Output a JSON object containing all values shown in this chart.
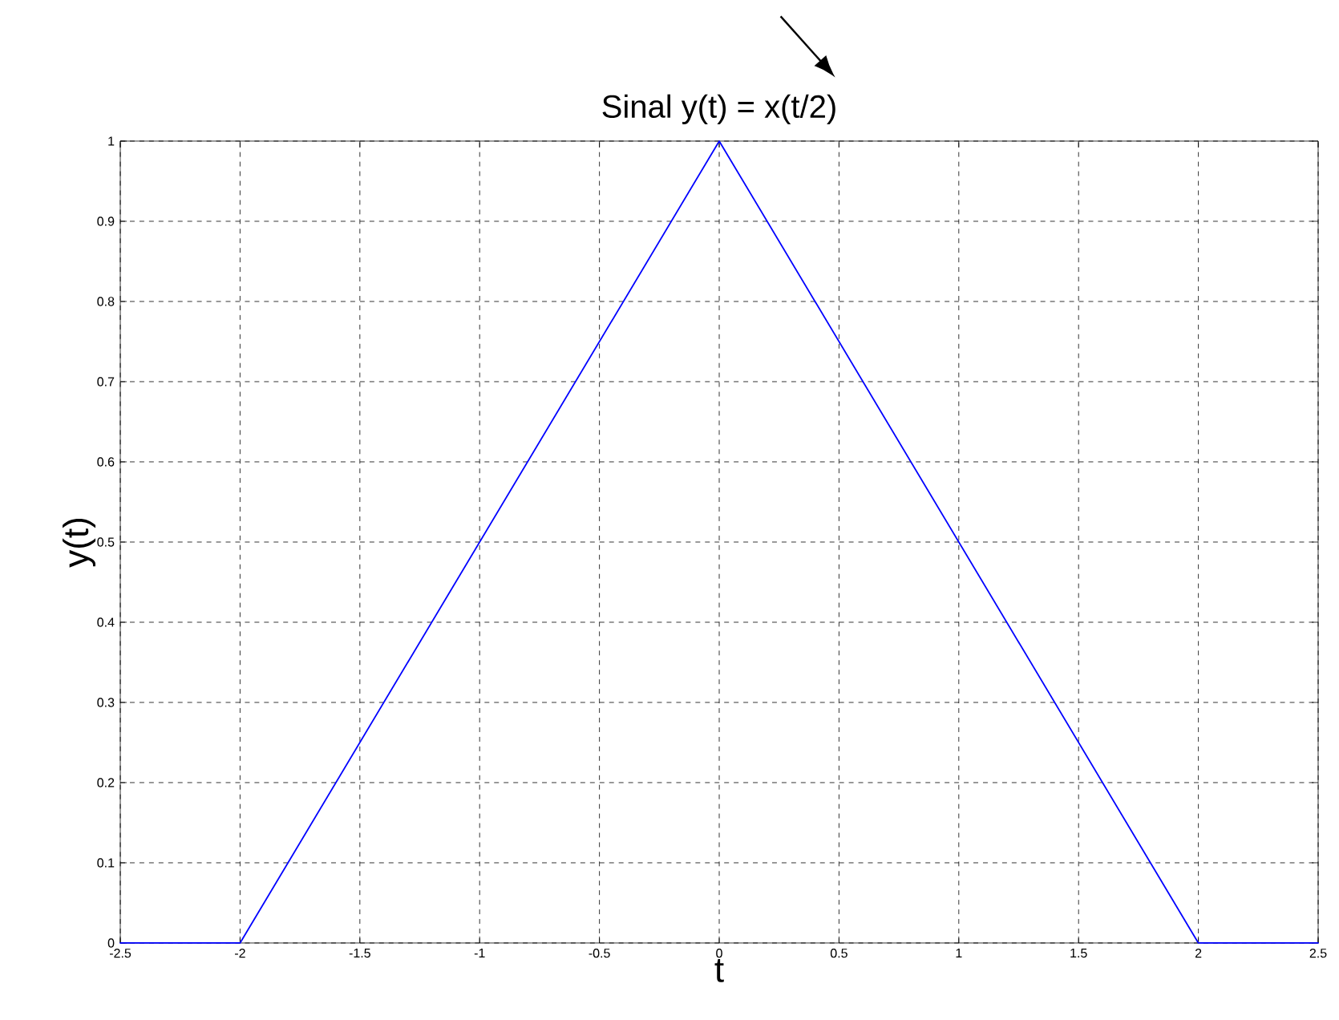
{
  "chart_data": {
    "type": "line",
    "title": "Sinal y(t) = x(t/2)",
    "xlabel": "t",
    "ylabel": "y(t)",
    "x": [
      -2.5,
      -2,
      0,
      2,
      2.5
    ],
    "series": [
      {
        "color": "#0000ff",
        "values": [
          0,
          0,
          1,
          0,
          0
        ]
      }
    ],
    "xlim": [
      -2.5,
      2.5
    ],
    "ylim": [
      0,
      1
    ],
    "xticks": [
      -2.5,
      -2,
      -1.5,
      -1,
      -0.5,
      0,
      0.5,
      1,
      1.5,
      2,
      2.5
    ],
    "yticks": [
      0,
      0.1,
      0.2,
      0.3,
      0.4,
      0.5,
      0.6,
      0.7,
      0.8,
      0.9,
      1
    ],
    "grid": true,
    "line_style": "solid",
    "marker": "none"
  }
}
